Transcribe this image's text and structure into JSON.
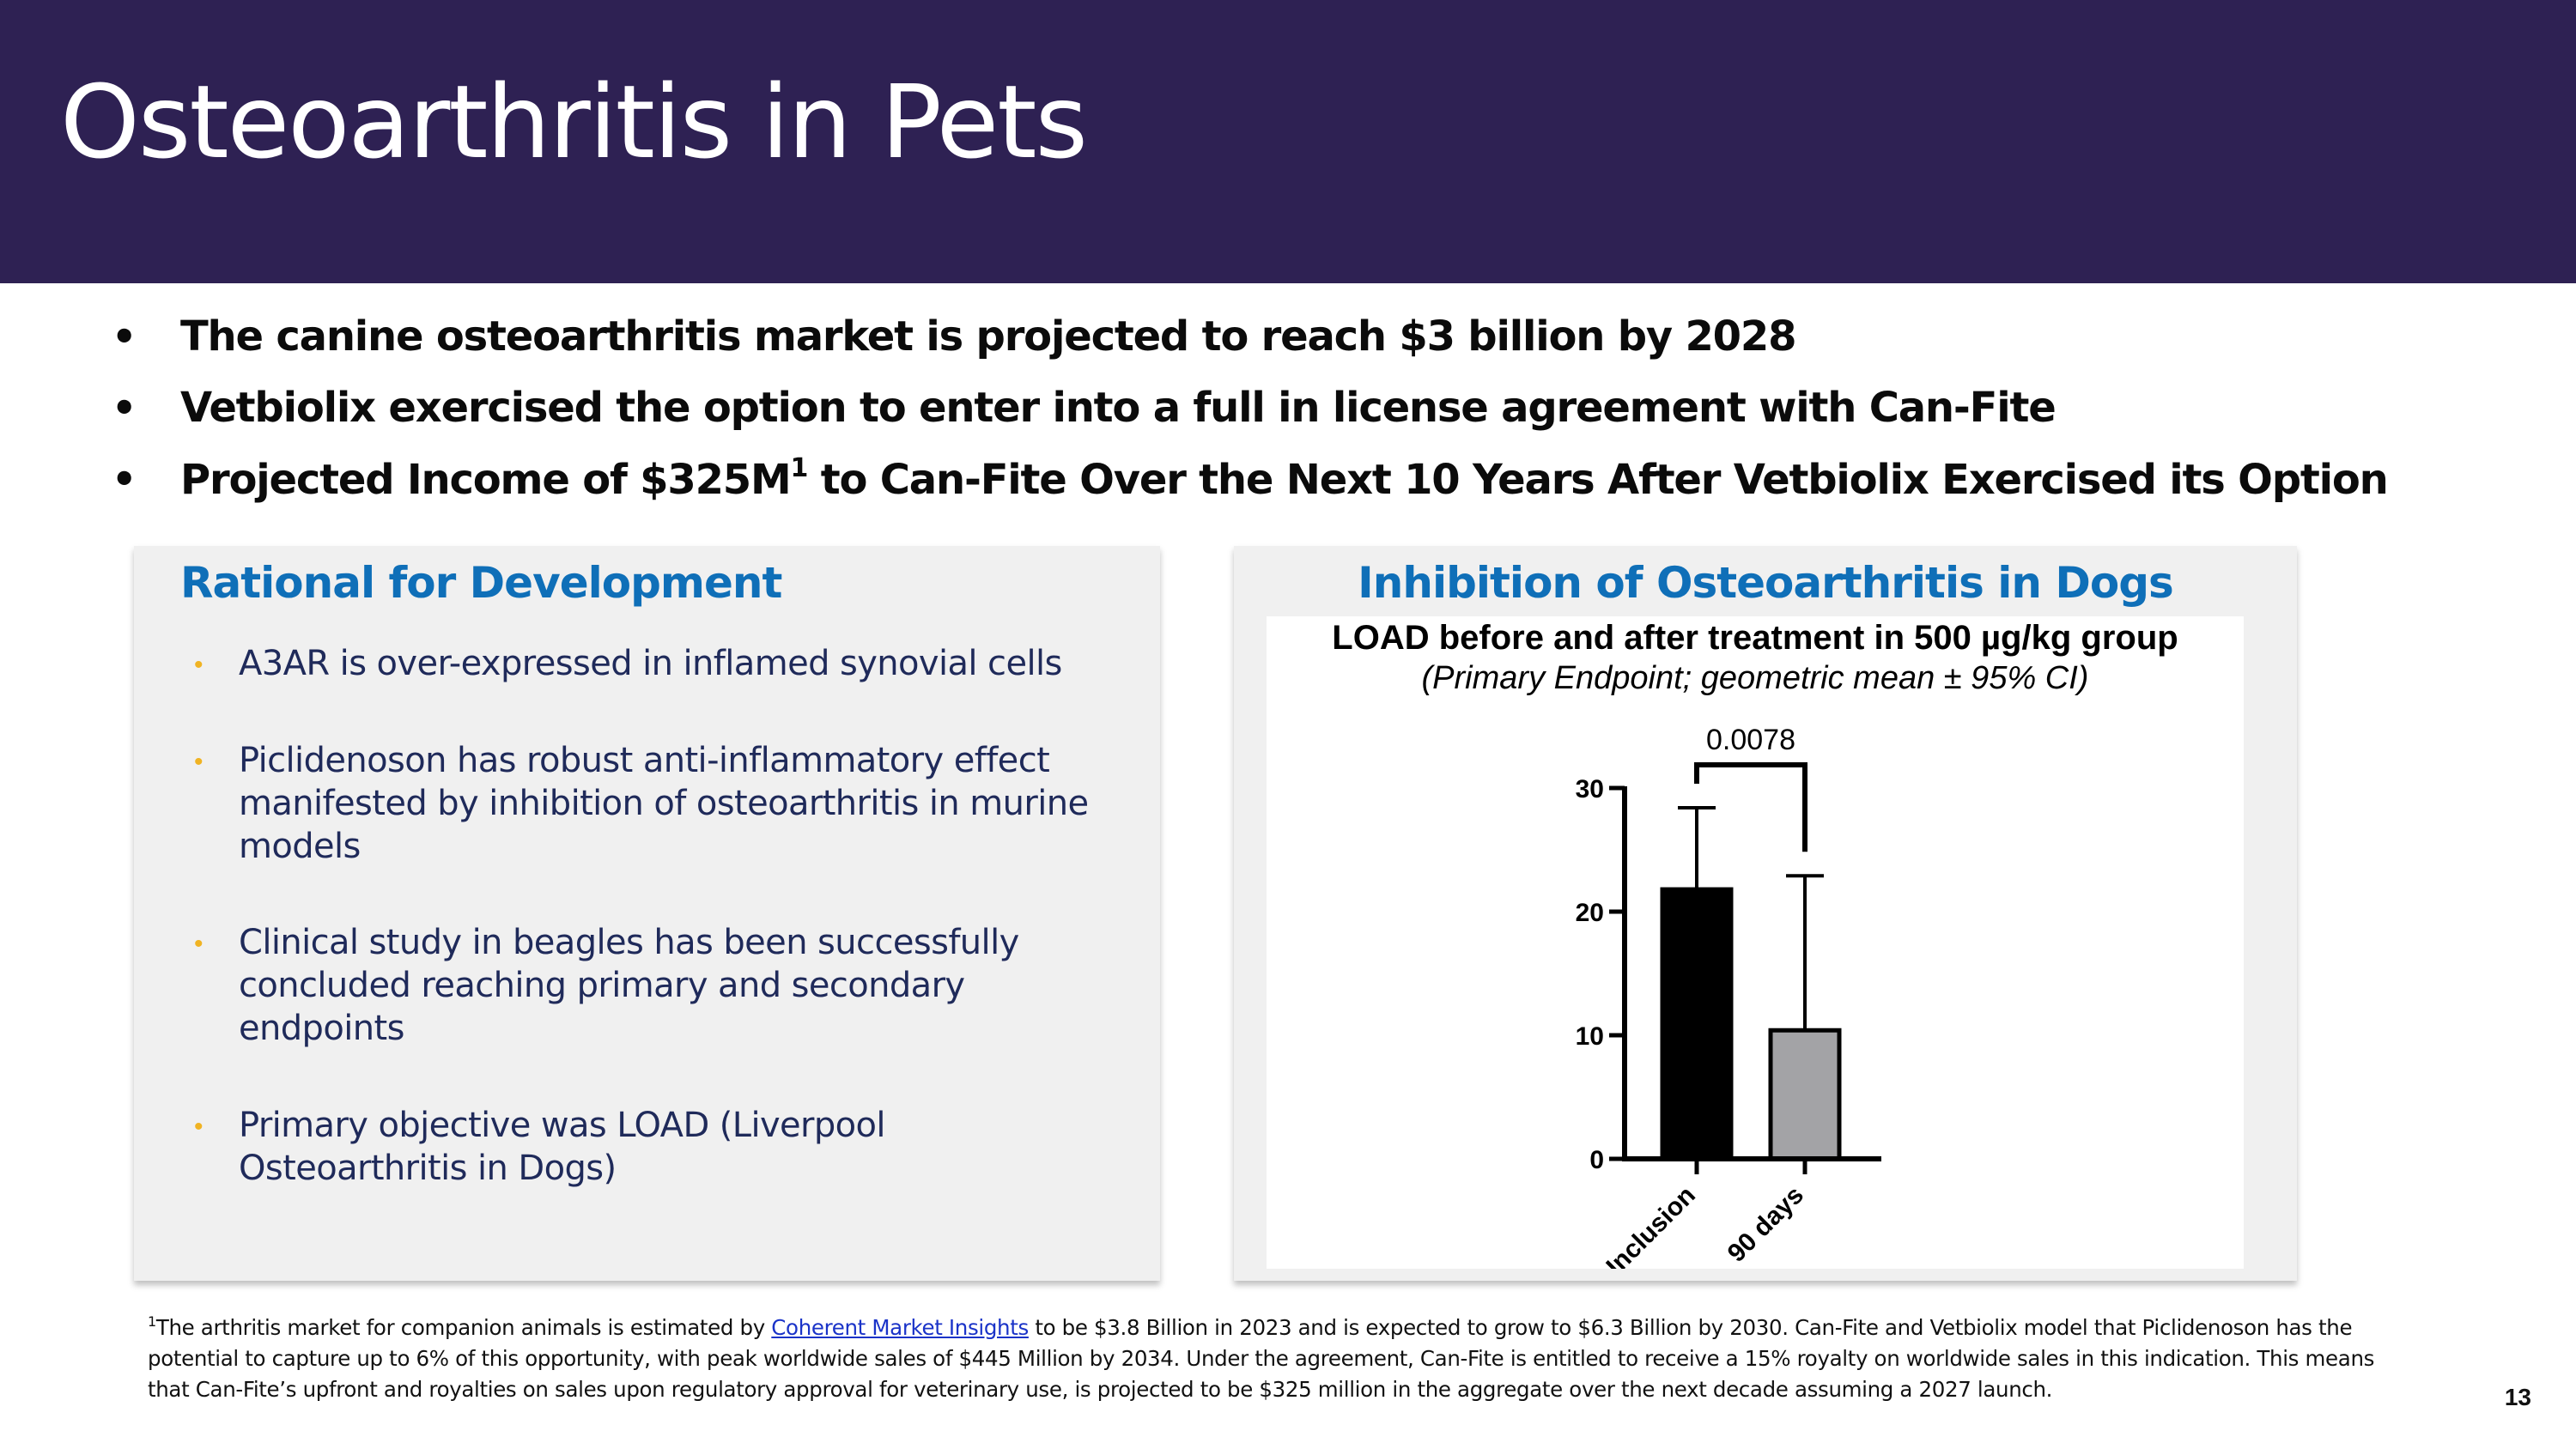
{
  "slide": {
    "title": "Osteoarthritis in Pets",
    "page_number": "13"
  },
  "bullets": [
    {
      "text": "The canine osteoarthritis market is projected to reach $3 billion by 2028"
    },
    {
      "text": "Vetbiolix exercised the option to enter into a full in license agreement with Can-Fite"
    },
    {
      "text_before": "Projected Income of $325M",
      "superscript": "1",
      "text_after": " to Can-Fite Over the Next 10 Years After Vetbiolix Exercised its Option"
    }
  ],
  "left_panel": {
    "title": "Rational for Development",
    "items": [
      "A3AR is over-expressed in inflamed synovial cells",
      "Piclidenoson has robust anti-inflammatory effect manifested by inhibition of osteoarthritis in murine models",
      "Clinical study in beagles has been successfully concluded reaching primary and secondary endpoints",
      "Primary objective was LOAD (Liverpool Osteoarthritis in Dogs)"
    ],
    "bullet_color": "#f0b323"
  },
  "right_panel": {
    "title": "Inhibition of Osteoarthritis in Dogs"
  },
  "chart_data": {
    "type": "bar",
    "title": "LOAD before and after treatment in 500 µg/kg group",
    "subtitle": "(Primary Endpoint; geometric mean ± 95% CI)",
    "categories": [
      "Inclusion",
      "90 days"
    ],
    "values": [
      21.8,
      10.4
    ],
    "error_upper": [
      28.4,
      22.9
    ],
    "bar_colors": [
      "#000000",
      "#a3a3a6"
    ],
    "ylim": [
      0,
      30
    ],
    "yticks": [
      "0",
      "10",
      "20",
      "30"
    ],
    "p_value": "0.0078",
    "xlabel": "",
    "ylabel": ""
  },
  "footnote": {
    "superscript": "1",
    "text_before": "The arthritis market for companion animals is estimated by ",
    "link_text": "Coherent Market Insights",
    "text_after": " to be $3.8 Billion in 2023 and is expected to grow to $6.3 Billion by 2030. Can-Fite and Vetbiolix model that Piclidenoson has the potential to capture up to 6% of this opportunity, with peak worldwide sales of $445 Million by 2034.  Under the agreement, Can-Fite is entitled to receive a 15% royalty on worldwide sales in this indication. This means that Can-Fite’s upfront and royalties on sales upon regulatory approval for veterinary use, is projected to be $325 million in the aggregate over the next decade assuming a 2027 launch."
  },
  "colors": {
    "header_bg": "#2e2153",
    "panel_title": "#0f6fb8",
    "panel_bg": "#f0f0f0"
  }
}
